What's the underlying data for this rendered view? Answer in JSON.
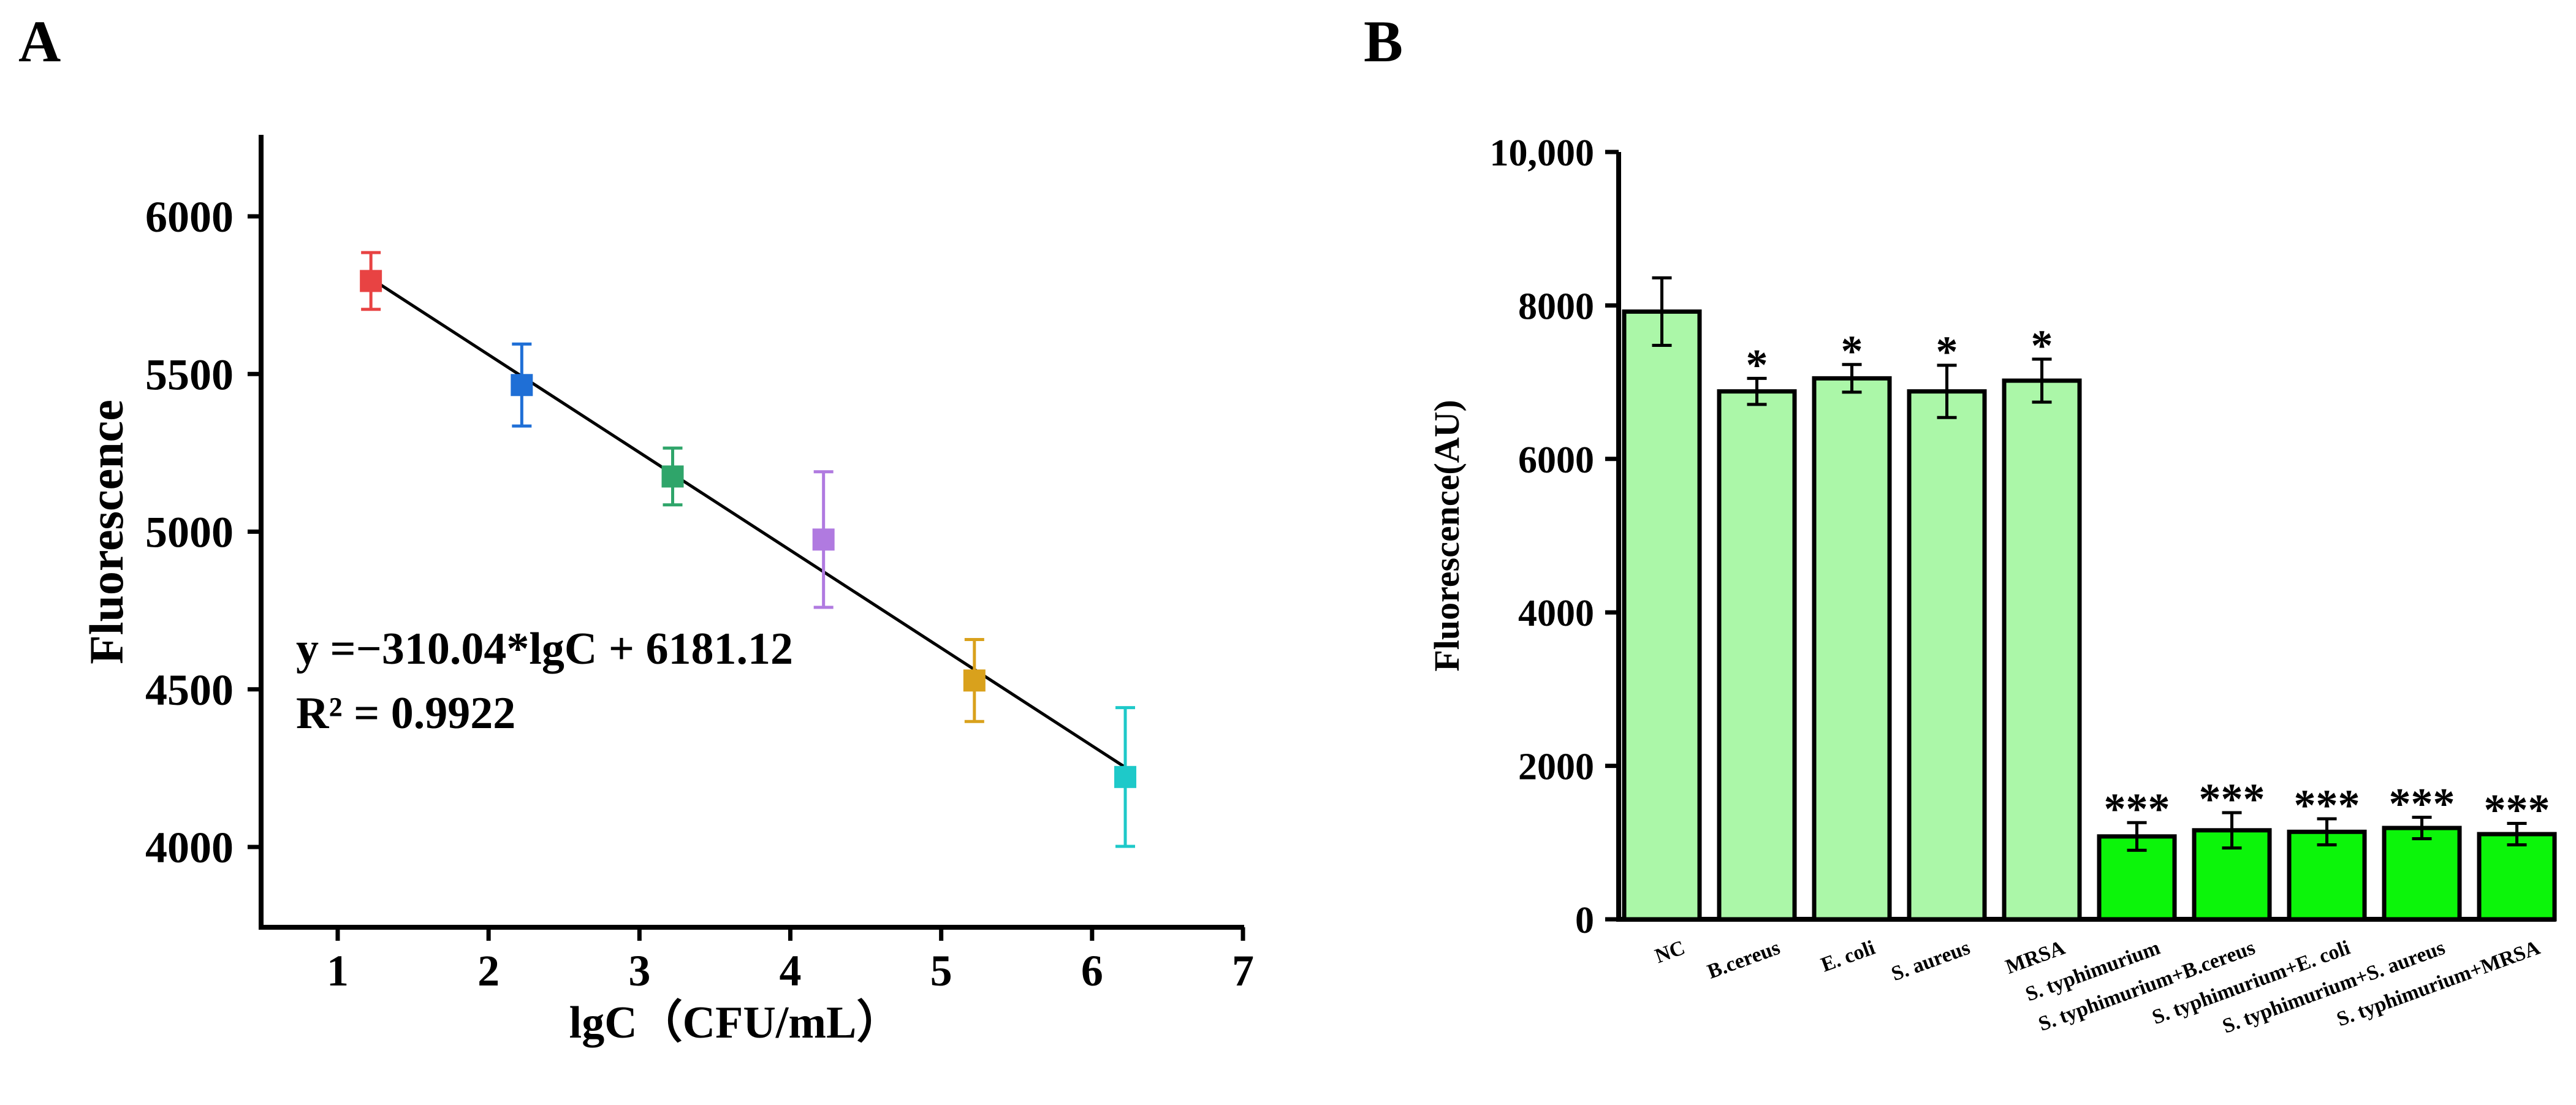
{
  "chart_data": [
    {
      "panel": "A",
      "type": "scatter",
      "xlabel": "lgC（CFU/mL）",
      "ylabel": "Fluorescence",
      "xlim": [
        0.5,
        7
      ],
      "ylim": [
        3750,
        6250
      ],
      "xticks": [
        1,
        2,
        3,
        4,
        5,
        6,
        7
      ],
      "yticks": [
        4000,
        4500,
        5000,
        5500,
        6000
      ],
      "points": [
        {
          "x": 1.22,
          "y": 5795,
          "err": 90,
          "color": "#e84343"
        },
        {
          "x": 2.22,
          "y": 5465,
          "err": 130,
          "color": "#1f6fd6"
        },
        {
          "x": 3.22,
          "y": 5175,
          "err": 90,
          "color": "#2fa56a"
        },
        {
          "x": 4.22,
          "y": 4975,
          "err": 215,
          "color": "#b07ae0"
        },
        {
          "x": 5.22,
          "y": 4528,
          "err": 130,
          "color": "#d9a11c"
        },
        {
          "x": 6.22,
          "y": 4222,
          "err": 220,
          "color": "#1ec9c9"
        }
      ],
      "fit": {
        "slope": -310.04,
        "intercept": 6181.12,
        "x_range": [
          1.22,
          6.22
        ]
      },
      "equation": "y =−310.04*lgC + 6181.12",
      "r2": "R² = 0.9922"
    },
    {
      "panel": "B",
      "type": "bar",
      "ylabel": "Fluorescence(AU)",
      "ylim": [
        0,
        10000
      ],
      "yticks": [
        0,
        2000,
        4000,
        6000,
        8000,
        10000
      ],
      "ytick_labels": [
        "0",
        "2000",
        "4000",
        "6000",
        "8000",
        "10,000"
      ],
      "categories": [
        "NC",
        "B.cereus",
        "E. coli",
        "S. aureus",
        "MRSA",
        "S. typhimurium",
        "S. typhimurium+B.cereus",
        "S. typhimurium+E. coli",
        "S. typhimurium+S. aureus",
        "S. typhimurium+MRSA"
      ],
      "values": [
        7920,
        6880,
        7050,
        6880,
        7020,
        1080,
        1160,
        1140,
        1190,
        1110
      ],
      "errors": [
        440,
        170,
        180,
        340,
        280,
        180,
        230,
        170,
        140,
        140
      ],
      "significance": [
        "",
        "*",
        "*",
        "*",
        "*",
        "***",
        "***",
        "***",
        "***",
        "***"
      ],
      "bar_colors": [
        "#abf7a8",
        "#abf7a8",
        "#abf7a8",
        "#abf7a8",
        "#abf7a8",
        "#0cf50a",
        "#0cf50a",
        "#0cf50a",
        "#0cf50a",
        "#0cf50a"
      ]
    }
  ]
}
